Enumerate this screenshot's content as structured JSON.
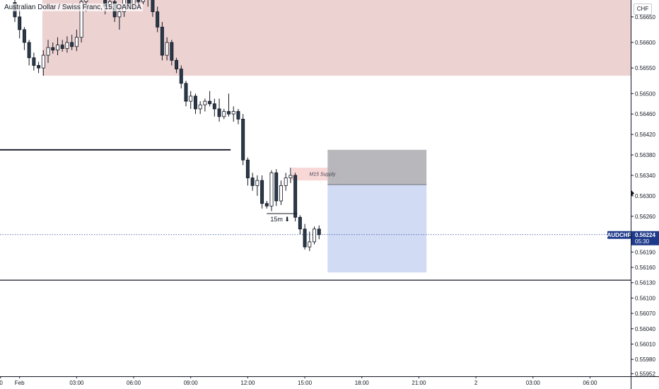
{
  "header": {
    "title": "Australian Dollar / Swiss Franc, 15, OANDA"
  },
  "price_scale": {
    "currency": "CHF"
  },
  "colors": {
    "bull": "#ffffff",
    "bear": "#2a3a4a",
    "wick": "#131722",
    "supply_zone": "#edd2d2",
    "small_supply_zone": "#f8d7d7",
    "stop_zone": "#b4b4b8",
    "target_zone": "#d1dbf4",
    "current_price_line": "#2b4a9a",
    "price_tag": "#1e3a8a",
    "level_line": "#131722"
  },
  "chart_data": {
    "type": "candlestick",
    "symbol": "AUDCHF",
    "timeframe": "15",
    "source": "OANDA",
    "price_axis": {
      "ticks": [
        "0.56650",
        "0.56600",
        "0.56550",
        "0.56500",
        "0.56460",
        "0.56420",
        "0.56380",
        "0.56340",
        "0.56300",
        "0.56260",
        "0.56224",
        "0.56190",
        "0.56160",
        "0.56130",
        "0.56100",
        "0.56070",
        "0.56040",
        "0.56010",
        "0.55980",
        "0.55952"
      ],
      "tick_values": [
        0.5665,
        0.566,
        0.5655,
        0.565,
        0.5646,
        0.5642,
        0.5638,
        0.5634,
        0.563,
        0.5626,
        0.56224,
        0.5619,
        0.5616,
        0.5613,
        0.561,
        0.5607,
        0.5604,
        0.5601,
        0.5598,
        0.55952
      ],
      "ylim": [
        0.55947,
        0.56683
      ]
    },
    "time_axis": {
      "labels": [
        ":00",
        "Feb",
        "03:00",
        "06:00",
        "09:00",
        "12:00",
        "15:00",
        "18:00",
        "21:00",
        "2",
        "03:00",
        "06:00"
      ],
      "hours": [
        23,
        24,
        27,
        30,
        33,
        36,
        39,
        42,
        45,
        48,
        51,
        54
      ],
      "xlim": [
        22.97,
        56.14
      ],
      "note_hour_origin": "hours counted from 00:00 of the day before Feb"
    },
    "candles": [
      {
        "t": 23.75,
        "o": 0.56678,
        "h": 0.5669,
        "l": 0.5664,
        "c": 0.5665
      },
      {
        "t": 24.0,
        "o": 0.5665,
        "h": 0.56665,
        "l": 0.56608,
        "c": 0.56625
      },
      {
        "t": 24.25,
        "o": 0.56625,
        "h": 0.5663,
        "l": 0.56585,
        "c": 0.566
      },
      {
        "t": 24.5,
        "o": 0.566,
        "h": 0.56605,
        "l": 0.56555,
        "c": 0.5657
      },
      {
        "t": 24.75,
        "o": 0.5657,
        "h": 0.5658,
        "l": 0.56545,
        "c": 0.56555
      },
      {
        "t": 25.0,
        "o": 0.56555,
        "h": 0.56562,
        "l": 0.5654,
        "c": 0.5655
      },
      {
        "t": 25.25,
        "o": 0.5655,
        "h": 0.56585,
        "l": 0.56535,
        "c": 0.56575
      },
      {
        "t": 25.5,
        "o": 0.56575,
        "h": 0.56605,
        "l": 0.5656,
        "c": 0.5659
      },
      {
        "t": 25.75,
        "o": 0.5659,
        "h": 0.566,
        "l": 0.56578,
        "c": 0.56585
      },
      {
        "t": 26.0,
        "o": 0.56585,
        "h": 0.5661,
        "l": 0.56575,
        "c": 0.56595
      },
      {
        "t": 26.25,
        "o": 0.56595,
        "h": 0.56605,
        "l": 0.56582,
        "c": 0.56588
      },
      {
        "t": 26.5,
        "o": 0.56588,
        "h": 0.56612,
        "l": 0.5658,
        "c": 0.566
      },
      {
        "t": 26.75,
        "o": 0.566,
        "h": 0.56615,
        "l": 0.56585,
        "c": 0.56592
      },
      {
        "t": 27.0,
        "o": 0.56592,
        "h": 0.56625,
        "l": 0.56583,
        "c": 0.5661
      },
      {
        "t": 27.25,
        "o": 0.5661,
        "h": 0.5669,
        "l": 0.566,
        "c": 0.5668
      },
      {
        "t": 27.5,
        "o": 0.5668,
        "h": 0.56695,
        "l": 0.5666,
        "c": 0.5669
      },
      {
        "t": 28.5,
        "o": 0.5669,
        "h": 0.567,
        "l": 0.56655,
        "c": 0.5667
      },
      {
        "t": 28.75,
        "o": 0.5667,
        "h": 0.5669,
        "l": 0.56665,
        "c": 0.5668
      },
      {
        "t": 29.0,
        "o": 0.5668,
        "h": 0.5669,
        "l": 0.5664,
        "c": 0.5665
      },
      {
        "t": 29.25,
        "o": 0.5665,
        "h": 0.5667,
        "l": 0.56625,
        "c": 0.5666
      },
      {
        "t": 29.5,
        "o": 0.5666,
        "h": 0.56695,
        "l": 0.5665,
        "c": 0.56685
      },
      {
        "t": 29.75,
        "o": 0.56685,
        "h": 0.5669,
        "l": 0.56665,
        "c": 0.56675
      },
      {
        "t": 30.0,
        "o": 0.56675,
        "h": 0.567,
        "l": 0.56665,
        "c": 0.56688
      },
      {
        "t": 30.25,
        "o": 0.56688,
        "h": 0.567,
        "l": 0.5667,
        "c": 0.5668
      },
      {
        "t": 30.5,
        "o": 0.5668,
        "h": 0.567,
        "l": 0.56675,
        "c": 0.5669
      },
      {
        "t": 30.75,
        "o": 0.5669,
        "h": 0.567,
        "l": 0.5667,
        "c": 0.56685
      },
      {
        "t": 31.0,
        "o": 0.56685,
        "h": 0.567,
        "l": 0.5665,
        "c": 0.5666
      },
      {
        "t": 31.25,
        "o": 0.5666,
        "h": 0.5667,
        "l": 0.5662,
        "c": 0.5663
      },
      {
        "t": 31.5,
        "o": 0.5663,
        "h": 0.5664,
        "l": 0.56565,
        "c": 0.56575
      },
      {
        "t": 31.75,
        "o": 0.56575,
        "h": 0.5661,
        "l": 0.56565,
        "c": 0.566
      },
      {
        "t": 32.0,
        "o": 0.566,
        "h": 0.56605,
        "l": 0.56555,
        "c": 0.56565
      },
      {
        "t": 32.25,
        "o": 0.56565,
        "h": 0.5657,
        "l": 0.5654,
        "c": 0.56548
      },
      {
        "t": 32.5,
        "o": 0.56548,
        "h": 0.56555,
        "l": 0.5651,
        "c": 0.5652
      },
      {
        "t": 32.75,
        "o": 0.5652,
        "h": 0.56525,
        "l": 0.56475,
        "c": 0.56485
      },
      {
        "t": 33.0,
        "o": 0.56485,
        "h": 0.56505,
        "l": 0.5647,
        "c": 0.56495
      },
      {
        "t": 33.25,
        "o": 0.56495,
        "h": 0.565,
        "l": 0.5646,
        "c": 0.5647
      },
      {
        "t": 33.5,
        "o": 0.5647,
        "h": 0.56485,
        "l": 0.5646,
        "c": 0.56478
      },
      {
        "t": 33.75,
        "o": 0.56478,
        "h": 0.5649,
        "l": 0.56465,
        "c": 0.56485
      },
      {
        "t": 34.0,
        "o": 0.56485,
        "h": 0.56505,
        "l": 0.56475,
        "c": 0.5648
      },
      {
        "t": 34.25,
        "o": 0.5648,
        "h": 0.5649,
        "l": 0.56455,
        "c": 0.5647
      },
      {
        "t": 34.5,
        "o": 0.5647,
        "h": 0.5649,
        "l": 0.56445,
        "c": 0.56455
      },
      {
        "t": 34.75,
        "o": 0.56455,
        "h": 0.5647,
        "l": 0.5645,
        "c": 0.56465
      },
      {
        "t": 35.0,
        "o": 0.56465,
        "h": 0.565,
        "l": 0.56455,
        "c": 0.5646
      },
      {
        "t": 35.25,
        "o": 0.5646,
        "h": 0.56475,
        "l": 0.56445,
        "c": 0.56465
      },
      {
        "t": 35.5,
        "o": 0.56465,
        "h": 0.5647,
        "l": 0.5644,
        "c": 0.5645
      },
      {
        "t": 35.75,
        "o": 0.5645,
        "h": 0.5646,
        "l": 0.5636,
        "c": 0.5637
      },
      {
        "t": 36.0,
        "o": 0.5637,
        "h": 0.56375,
        "l": 0.5632,
        "c": 0.56335
      },
      {
        "t": 36.25,
        "o": 0.56335,
        "h": 0.56345,
        "l": 0.5631,
        "c": 0.5632
      },
      {
        "t": 36.5,
        "o": 0.5632,
        "h": 0.5634,
        "l": 0.563,
        "c": 0.5633
      },
      {
        "t": 36.75,
        "o": 0.5633,
        "h": 0.5634,
        "l": 0.56275,
        "c": 0.56285
      },
      {
        "t": 37.0,
        "o": 0.56285,
        "h": 0.5629,
        "l": 0.56275,
        "c": 0.5628
      },
      {
        "t": 37.25,
        "o": 0.5628,
        "h": 0.5635,
        "l": 0.5627,
        "c": 0.56345
      },
      {
        "t": 37.5,
        "o": 0.56345,
        "h": 0.56352,
        "l": 0.5628,
        "c": 0.5629
      },
      {
        "t": 37.75,
        "o": 0.5629,
        "h": 0.5633,
        "l": 0.56282,
        "c": 0.5632
      },
      {
        "t": 38.0,
        "o": 0.5632,
        "h": 0.56345,
        "l": 0.5631,
        "c": 0.56335
      },
      {
        "t": 38.25,
        "o": 0.56335,
        "h": 0.56355,
        "l": 0.56325,
        "c": 0.5634
      },
      {
        "t": 38.5,
        "o": 0.5634,
        "h": 0.56345,
        "l": 0.5625,
        "c": 0.56258
      },
      {
        "t": 38.75,
        "o": 0.56258,
        "h": 0.56262,
        "l": 0.56225,
        "c": 0.56235
      },
      {
        "t": 39.0,
        "o": 0.56235,
        "h": 0.56245,
        "l": 0.56195,
        "c": 0.562
      },
      {
        "t": 39.25,
        "o": 0.562,
        "h": 0.5623,
        "l": 0.56192,
        "c": 0.5621
      },
      {
        "t": 39.5,
        "o": 0.5621,
        "h": 0.5624,
        "l": 0.56205,
        "c": 0.56235
      },
      {
        "t": 39.75,
        "o": 0.56235,
        "h": 0.56242,
        "l": 0.56215,
        "c": 0.56224
      }
    ],
    "zones": [
      {
        "label": "",
        "t0": 25.2,
        "t1": 56.2,
        "p_top": 0.567,
        "p_bottom": 0.56535
      },
      {
        "label": "M15 Supply",
        "t0": 38.3,
        "t1": 40.8,
        "p_top": 0.56355,
        "p_bottom": 0.5633
      },
      {
        "label": "",
        "t0": 40.2,
        "t1": 45.4,
        "p_top": 0.5639,
        "p_bottom": 0.56322
      },
      {
        "label": "",
        "t0": 40.2,
        "t1": 45.4,
        "p_top": 0.56322,
        "p_bottom": 0.5615
      }
    ],
    "levels": [
      {
        "price": 0.5639,
        "t0": 22.97,
        "t1": 35.1
      },
      {
        "price": 0.56135,
        "t0": 22.97,
        "t1": 56.2
      }
    ],
    "annotations": [
      {
        "text": "15m ⬇",
        "t": 37.7,
        "p": 0.56261
      }
    ],
    "current_price": {
      "value": "0.56224",
      "symbol": "AUDCHF",
      "countdown": "05:30",
      "price": 0.56224
    }
  }
}
